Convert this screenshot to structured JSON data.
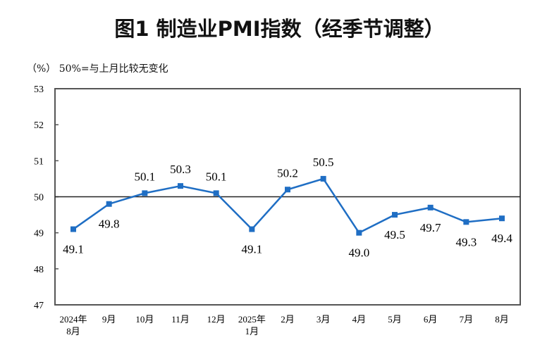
{
  "chart_data": {
    "type": "line",
    "title": "图1  制造业PMI指数（经季节调整）",
    "unit_note": "（%）  50%=与上月比较无变化",
    "categories": [
      [
        "2024年",
        "8月"
      ],
      [
        "9月"
      ],
      [
        "10月"
      ],
      [
        "11月"
      ],
      [
        "12月"
      ],
      [
        "2025年",
        "1月"
      ],
      [
        "2月"
      ],
      [
        "3月"
      ],
      [
        "4月"
      ],
      [
        "5月"
      ],
      [
        "6月"
      ],
      [
        "7月"
      ],
      [
        "8月"
      ]
    ],
    "values": [
      49.1,
      49.8,
      50.1,
      50.3,
      50.1,
      49.1,
      50.2,
      50.5,
      49.0,
      49.5,
      49.7,
      49.3,
      49.4
    ],
    "data_labels": [
      "49.1",
      "49.8",
      "50.1",
      "50.3",
      "50.1",
      "49.1",
      "50.2",
      "50.5",
      "49.0",
      "49.5",
      "49.7",
      "49.3",
      "49.4"
    ],
    "ylim": [
      47,
      53
    ],
    "yticks": [
      "47",
      "48",
      "49",
      "50",
      "51",
      "52",
      "53"
    ],
    "reference_line": 50,
    "grid": false,
    "colors": {
      "line": "#1f6ec4",
      "marker": "#1f6ec4",
      "axis": "#555555"
    }
  }
}
